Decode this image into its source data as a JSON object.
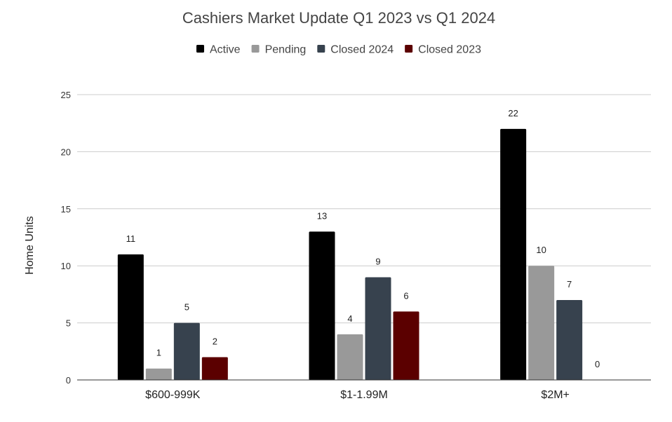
{
  "chart_data": {
    "type": "bar",
    "title": "Cashiers Market Update Q1 2023 vs Q1 2024",
    "xlabel": "",
    "ylabel": "Home Units",
    "ylim": [
      0,
      25
    ],
    "yticks": [
      0,
      5,
      10,
      15,
      20,
      25
    ],
    "grid": true,
    "legend_position": "top",
    "categories": [
      "$600-999K",
      "$1-1.99M",
      "$2M+"
    ],
    "series": [
      {
        "name": "Active",
        "color": "#000000",
        "values": [
          11,
          13,
          22
        ]
      },
      {
        "name": "Pending",
        "color": "#999999",
        "values": [
          1,
          4,
          10
        ]
      },
      {
        "name": "Closed 2024",
        "color": "#37424e",
        "values": [
          5,
          9,
          7
        ]
      },
      {
        "name": "Closed 2023",
        "color": "#5b0000",
        "values": [
          2,
          6,
          0
        ]
      }
    ]
  }
}
